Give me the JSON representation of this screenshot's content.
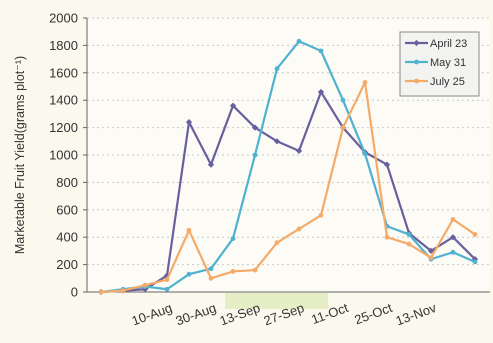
{
  "chart_data": {
    "type": "line",
    "title": "",
    "xlabel": "",
    "ylabel": "Marketable Fruit Yield(grams plot⁻¹)",
    "ylim": [
      0,
      2000
    ],
    "yticks": [
      "0",
      "200",
      "400",
      "600",
      "800",
      "1000",
      "1200",
      "1400",
      "1600",
      "1800",
      "2000"
    ],
    "xtick_labels": [
      "10-Aug",
      "30-Aug",
      "13-Sep",
      "27-Sep",
      "11-Oct",
      "25-Oct",
      "13-Nov"
    ],
    "xtick_positions": [
      3,
      5,
      7,
      9,
      11,
      13,
      15
    ],
    "x": [
      0,
      1,
      2,
      3,
      4,
      5,
      6,
      7,
      8,
      9,
      10,
      11,
      12,
      13,
      14,
      15,
      16,
      17
    ],
    "grid": "horizontal-dashed",
    "legend_position": "top-right",
    "series": [
      {
        "name": "April 23",
        "color": "#6a5f9e",
        "marker": "diamond",
        "values": [
          0,
          10,
          20,
          120,
          1240,
          930,
          1360,
          1200,
          1100,
          1030,
          1460,
          1200,
          1020,
          930,
          430,
          300,
          400,
          240
        ]
      },
      {
        "name": "May 31",
        "color": "#4fb2d0",
        "marker": "circle",
        "values": [
          0,
          20,
          40,
          20,
          130,
          170,
          390,
          1000,
          1630,
          1830,
          1760,
          1400,
          1010,
          480,
          420,
          240,
          290,
          220
        ]
      },
      {
        "name": "July 25",
        "color": "#f4ab6a",
        "marker": "circle",
        "values": [
          0,
          10,
          50,
          90,
          450,
          100,
          150,
          160,
          360,
          460,
          560,
          1200,
          1530,
          400,
          350,
          250,
          530,
          420
        ]
      }
    ]
  }
}
